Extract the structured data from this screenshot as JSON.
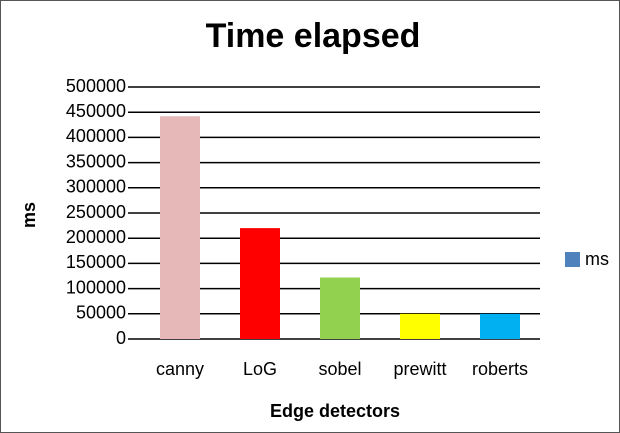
{
  "chart_data": {
    "type": "bar",
    "title": "Time elapsed",
    "x_label": "Edge detectors",
    "y_label": "ms",
    "categories": [
      "canny",
      "LoG",
      "sobel",
      "prewitt",
      "roberts"
    ],
    "series": [
      {
        "name": "ms",
        "color": "#4f81bd",
        "values": [
          442000,
          220000,
          122000,
          50000,
          50000
        ]
      }
    ],
    "bar_colors": [
      "#e6b8b7",
      "#ff0000",
      "#92d050",
      "#ffff00",
      "#00b0f0"
    ],
    "ylim": [
      0,
      500000
    ],
    "yticks": [
      0,
      50000,
      100000,
      150000,
      200000,
      250000,
      300000,
      350000,
      400000,
      450000,
      500000
    ],
    "grid": true,
    "legend": "right"
  }
}
